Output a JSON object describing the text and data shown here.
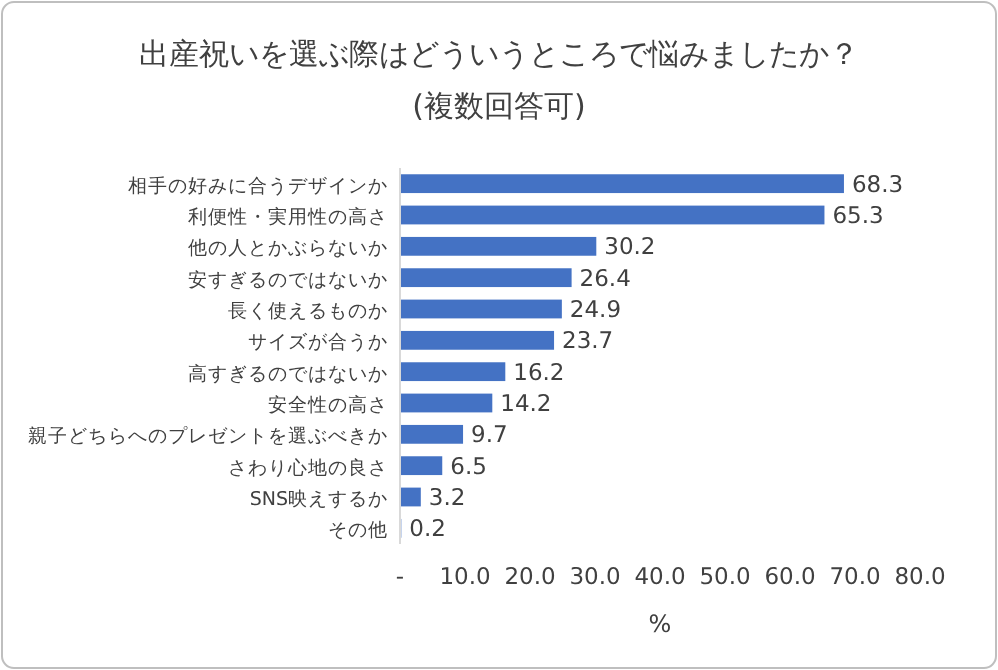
{
  "chart_data": {
    "type": "bar",
    "orientation": "horizontal",
    "title": "出産祝いを選ぶ際はどういうところで悩みましたか？",
    "subtitle": "(複数回答可)",
    "xlabel": "%",
    "categories": [
      "相手の好みに合うデザインか",
      "利便性・実用性の高さ",
      "他の人とかぶらないか",
      "安すぎるのではないか",
      "長く使えるものか",
      "サイズが合うか",
      "高すぎるのではないか",
      "安全性の高さ",
      "親子どちらへのプレゼントを選ぶべきか",
      "さわり心地の良さ",
      "SNS映えするか",
      "その他"
    ],
    "values": [
      68.3,
      65.3,
      30.2,
      26.4,
      24.9,
      23.7,
      16.2,
      14.2,
      9.7,
      6.5,
      3.2,
      0.2
    ],
    "color": "#4472c4",
    "data_labels": true,
    "xlim": [
      0,
      80
    ],
    "xticks": [
      {
        "value": 0,
        "label": "-"
      },
      {
        "value": 10,
        "label": "10.0"
      },
      {
        "value": 20,
        "label": "20.0"
      },
      {
        "value": 30,
        "label": "30.0"
      },
      {
        "value": 40,
        "label": "40.0"
      },
      {
        "value": 50,
        "label": "50.0"
      },
      {
        "value": 60,
        "label": "60.0"
      },
      {
        "value": 70,
        "label": "70.0"
      },
      {
        "value": 80,
        "label": "80.0"
      }
    ]
  }
}
